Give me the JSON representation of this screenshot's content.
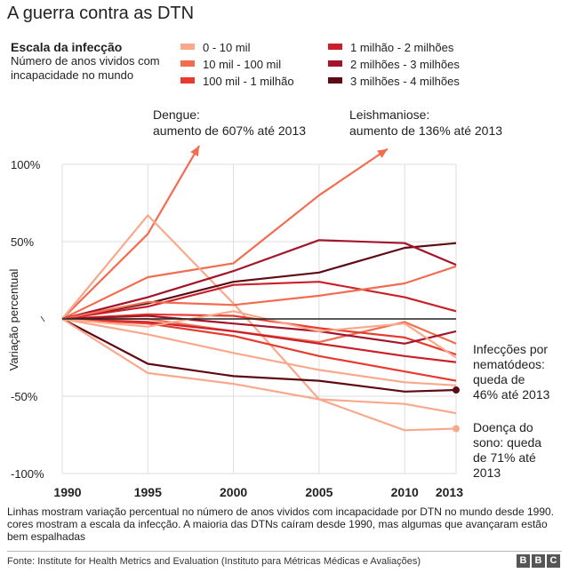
{
  "title": "A guerra contra as DTN",
  "legend": {
    "title": "Escala da infecção",
    "subtitle": "Número de anos vividos com incapacidade no mundo",
    "items": [
      {
        "label": "0 - 10 mil",
        "color": "#f8a98b"
      },
      {
        "label": "10 mil - 100 mil",
        "color": "#f26c50"
      },
      {
        "label": "100 mil - 1 milhão",
        "color": "#e63b2e"
      },
      {
        "label": "1 milhão - 2 milhões",
        "color": "#c9202a"
      },
      {
        "label": "2 milhões - 3 milhões",
        "color": "#a3152a"
      },
      {
        "label": "3 milhões - 4 milhões",
        "color": "#5e0a14"
      }
    ]
  },
  "annotations": {
    "dengue": [
      "Dengue:",
      "aumento de 607% até 2013"
    ],
    "leish": [
      "Leishmaniose:",
      "aumento de 136% até 2013"
    ],
    "nematodes": [
      "Infecções por",
      "nematódeos:",
      "queda de",
      "46% até 2013"
    ],
    "sleeping": [
      "Doença do",
      "sono: queda",
      "de 71% até",
      "2013"
    ]
  },
  "chart_data": {
    "type": "line",
    "ylabel": "Variação percentual",
    "ylim": [
      -100,
      100
    ],
    "yticks": [
      "100%",
      "50%",
      "",
      "-50%",
      "-100%"
    ],
    "x": [
      1990,
      1995,
      2000,
      2005,
      2010,
      2013
    ],
    "xtick_labels": [
      "1990",
      "1995",
      "2000",
      "2005",
      "2010",
      "2013"
    ],
    "series": [
      {
        "color": "#f26c50",
        "values": [
          0,
          55,
          null,
          null,
          null,
          null
        ],
        "arrow_to": [
          1998,
          112
        ]
      },
      {
        "color": "#f26c50",
        "values": [
          0,
          27,
          36,
          80,
          null,
          null
        ],
        "arrow_to": [
          2009,
          110
        ]
      },
      {
        "color": "#f8a98b",
        "values": [
          0,
          67,
          10,
          -52,
          -72,
          -71
        ]
      },
      {
        "color": "#5e0a14",
        "values": [
          0,
          -29,
          -37,
          -40,
          -47,
          -46
        ]
      },
      {
        "color": "#5e0a14",
        "values": [
          0,
          10,
          24,
          30,
          46,
          49
        ]
      },
      {
        "color": "#a3152a",
        "values": [
          0,
          14,
          31,
          51,
          49,
          35
        ]
      },
      {
        "color": "#c9202a",
        "values": [
          0,
          8,
          22,
          24,
          14,
          5
        ]
      },
      {
        "color": "#f26c50",
        "values": [
          0,
          11,
          9,
          15,
          23,
          34
        ]
      },
      {
        "color": "#f26c50",
        "values": [
          0,
          0,
          -8,
          -15,
          -2,
          -16
        ]
      },
      {
        "color": "#e63b2e",
        "values": [
          0,
          3,
          2,
          -6,
          -12,
          -23
        ]
      },
      {
        "color": "#a3152a",
        "values": [
          0,
          2,
          -3,
          -8,
          -16,
          -8
        ]
      },
      {
        "color": "#c9202a",
        "values": [
          0,
          -2,
          -8,
          -16,
          -24,
          -28
        ]
      },
      {
        "color": "#e63b2e",
        "values": [
          0,
          -3,
          -11,
          -24,
          -34,
          -40
        ]
      },
      {
        "color": "#f8a98b",
        "values": [
          0,
          -10,
          -22,
          -33,
          -41,
          -43
        ]
      },
      {
        "color": "#f8a98b",
        "values": [
          0,
          -35,
          -42,
          -52,
          -55,
          -61
        ]
      },
      {
        "color": "#f8a98b",
        "values": [
          0,
          -5,
          5,
          -8,
          -3,
          -25
        ]
      },
      {
        "color": "#222222",
        "values": [
          0,
          0,
          0,
          0,
          0,
          0
        ]
      }
    ],
    "markers": [
      {
        "x": 2013,
        "y": -46,
        "color": "#5e0a14"
      },
      {
        "x": 2013,
        "y": -71,
        "color": "#f8a98b"
      }
    ]
  },
  "note": "Linhas mostram variação percentual no número de anos vividos com incapacidade por DTN no mundo desde 1990. cores mostram a escala da infecção. A maioria das DTNs caíram desde 1990, mas algumas que avançaram estão bem espalhadas",
  "source": "Fonte: Institute for Health Metrics and Evaluation (Instituto para Métricas Médicas e Avaliações)",
  "brand": [
    "B",
    "B",
    "C"
  ]
}
